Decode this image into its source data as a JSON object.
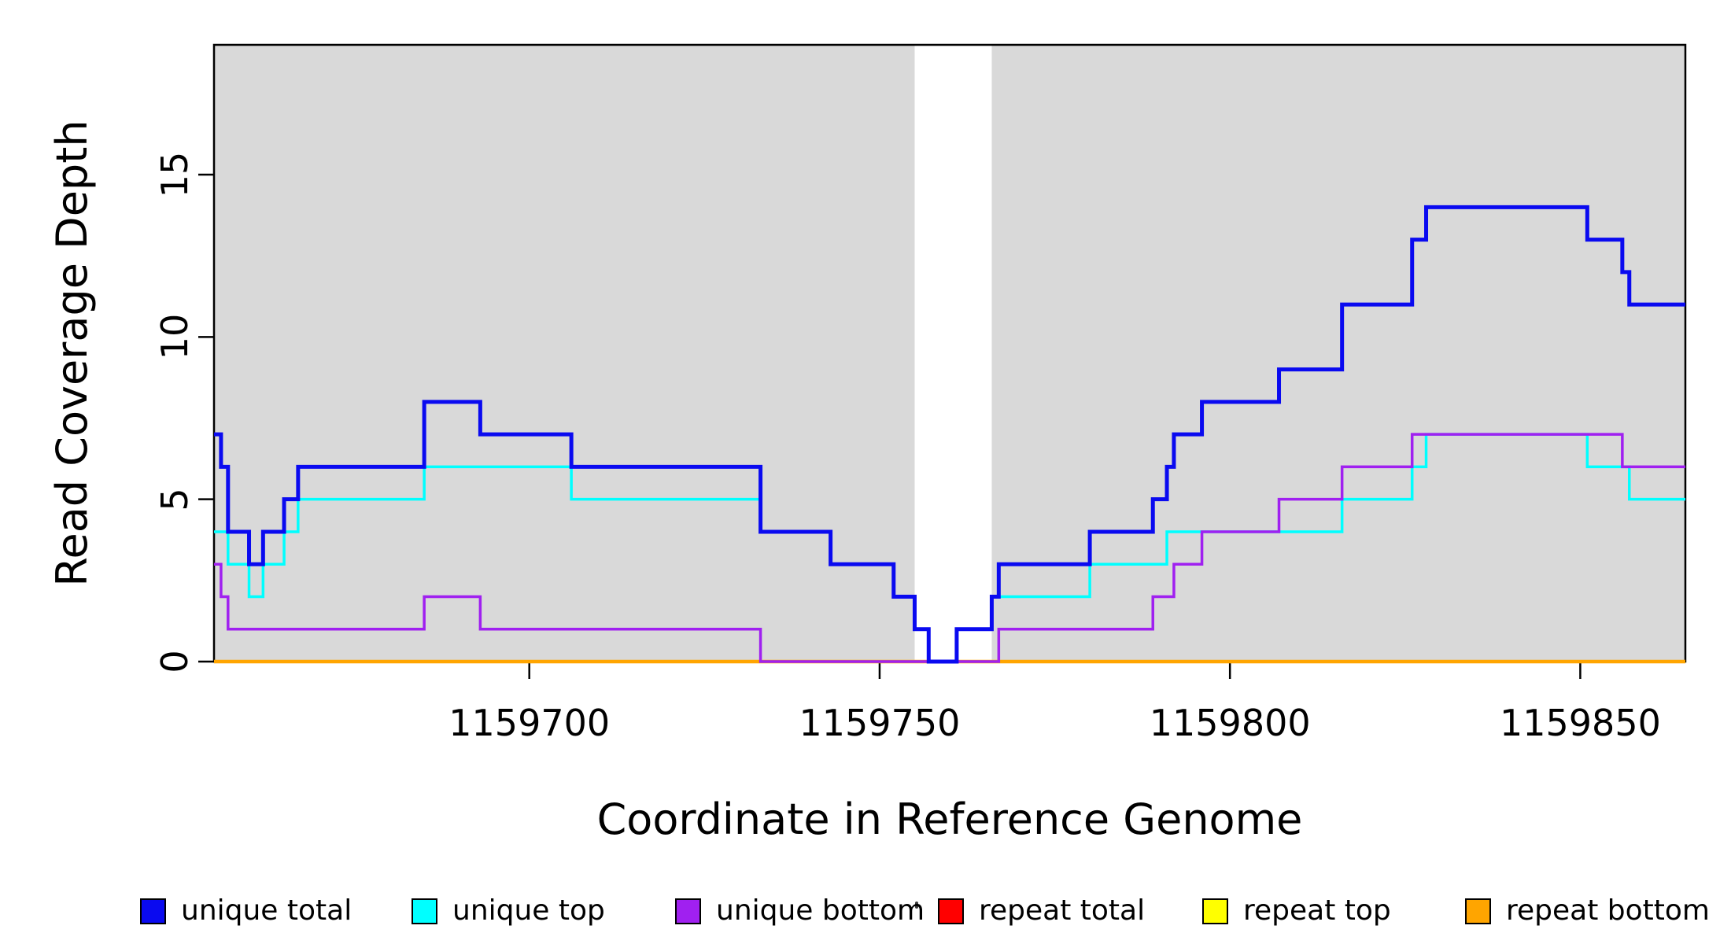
{
  "chart_data": {
    "type": "line",
    "subtype": "step-after",
    "title": "",
    "xlabel": "Coordinate in Reference Genome",
    "ylabel": "Read Coverage Depth",
    "xlim": [
      1159655,
      1159865
    ],
    "ylim": [
      0,
      19
    ],
    "x_ticks": [
      1159700,
      1159750,
      1159800,
      1159850
    ],
    "y_ticks": [
      0,
      5,
      10,
      15
    ],
    "grid": false,
    "legend_position": "bottom-horizontal",
    "plot_bg_color": "#ffffff",
    "band_color": "#D9D9D9",
    "background_bands": [
      {
        "x0": 1159655,
        "x1": 1159755
      },
      {
        "x0": 1159766,
        "x1": 1159865
      }
    ],
    "series": [
      {
        "name": "repeat total",
        "color": "#FF0000",
        "width": 4,
        "points": [
          [
            1159655,
            0
          ],
          [
            1159865,
            0
          ]
        ]
      },
      {
        "name": "repeat top",
        "color": "#FFFF00",
        "width": 4,
        "points": [
          [
            1159655,
            0
          ],
          [
            1159865,
            0
          ]
        ]
      },
      {
        "name": "repeat bottom",
        "color": "#FFA500",
        "width": 4.5,
        "points": [
          [
            1159655,
            0
          ],
          [
            1159865,
            0
          ]
        ]
      },
      {
        "name": "unique top",
        "color": "#00FFFF",
        "width": 3.5,
        "points": [
          [
            1159655,
            4
          ],
          [
            1159657,
            3
          ],
          [
            1159660,
            2
          ],
          [
            1159662,
            3
          ],
          [
            1159665,
            4
          ],
          [
            1159667,
            5
          ],
          [
            1159685,
            6
          ],
          [
            1159706,
            5
          ],
          [
            1159733,
            4
          ],
          [
            1159743,
            3
          ],
          [
            1159752,
            2
          ],
          [
            1159755,
            1
          ],
          [
            1159757,
            0
          ],
          [
            1159761,
            1
          ],
          [
            1159766,
            2
          ],
          [
            1159780,
            3
          ],
          [
            1159791,
            4
          ],
          [
            1159816,
            5
          ],
          [
            1159826,
            6
          ],
          [
            1159828,
            7
          ],
          [
            1159851,
            6
          ],
          [
            1159857,
            5
          ],
          [
            1159865,
            5
          ]
        ]
      },
      {
        "name": "unique bottom",
        "color": "#A020F0",
        "width": 3.5,
        "points": [
          [
            1159655,
            3
          ],
          [
            1159656,
            2
          ],
          [
            1159657,
            1
          ],
          [
            1159685,
            2
          ],
          [
            1159693,
            1
          ],
          [
            1159733,
            0
          ],
          [
            1159767,
            1
          ],
          [
            1159789,
            2
          ],
          [
            1159792,
            3
          ],
          [
            1159796,
            4
          ],
          [
            1159807,
            5
          ],
          [
            1159816,
            6
          ],
          [
            1159826,
            7
          ],
          [
            1159856,
            6
          ],
          [
            1159865,
            6
          ]
        ]
      },
      {
        "name": "unique total",
        "color": "#0A0AF0",
        "width": 5,
        "points": [
          [
            1159655,
            7
          ],
          [
            1159656,
            6
          ],
          [
            1159657,
            4
          ],
          [
            1159660,
            3
          ],
          [
            1159662,
            4
          ],
          [
            1159665,
            5
          ],
          [
            1159667,
            6
          ],
          [
            1159685,
            8
          ],
          [
            1159693,
            7
          ],
          [
            1159706,
            6
          ],
          [
            1159733,
            4
          ],
          [
            1159743,
            3
          ],
          [
            1159752,
            2
          ],
          [
            1159755,
            1
          ],
          [
            1159757,
            0
          ],
          [
            1159761,
            1
          ],
          [
            1159766,
            2
          ],
          [
            1159767,
            3
          ],
          [
            1159780,
            4
          ],
          [
            1159789,
            5
          ],
          [
            1159791,
            6
          ],
          [
            1159792,
            7
          ],
          [
            1159796,
            8
          ],
          [
            1159807,
            9
          ],
          [
            1159816,
            11
          ],
          [
            1159826,
            13
          ],
          [
            1159828,
            14
          ],
          [
            1159851,
            13
          ],
          [
            1159856,
            12
          ],
          [
            1159857,
            11
          ],
          [
            1159865,
            11
          ]
        ]
      }
    ],
    "legend": [
      {
        "label": "unique total",
        "color": "#0A0AF0"
      },
      {
        "label": "unique top",
        "color": "#00FFFF"
      },
      {
        "label": "unique bottom",
        "color": "#A020F0"
      },
      {
        "label": "repeat total",
        "color": "#FF0000"
      },
      {
        "label": "repeat top",
        "color": "#FFFF00"
      },
      {
        "label": "repeat bottom",
        "color": "#FFA500"
      }
    ]
  }
}
